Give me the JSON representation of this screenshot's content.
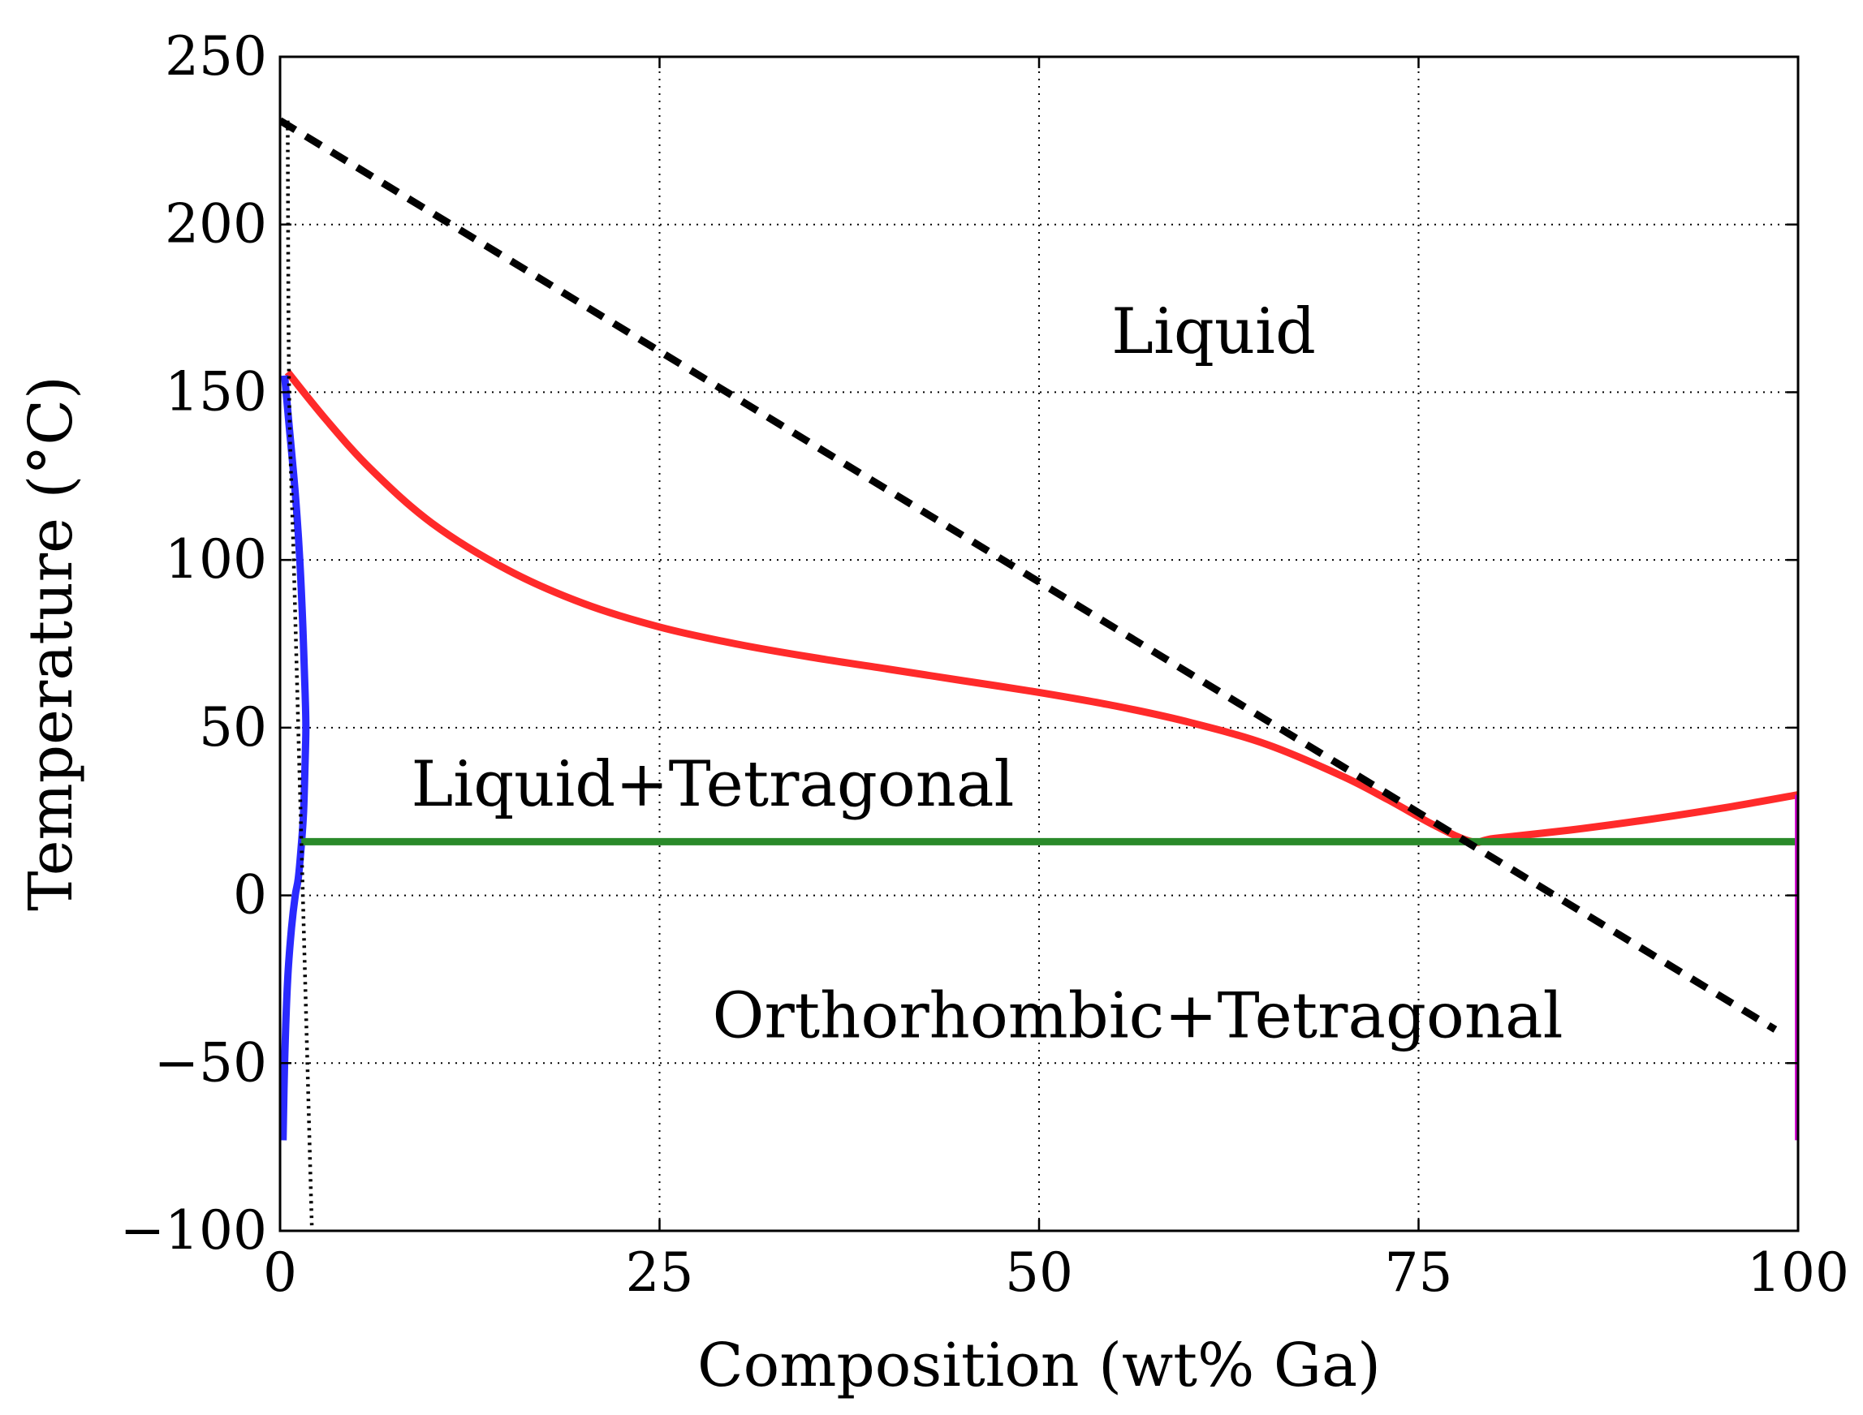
{
  "chart_data": {
    "type": "line",
    "title": "",
    "xlabel": "Composition (wt% Ga)",
    "ylabel": "Temperature (°C)",
    "xlim": [
      0,
      100
    ],
    "ylim": [
      -100,
      250
    ],
    "xticks": [
      0,
      25,
      50,
      75,
      100
    ],
    "yticks": [
      -100,
      -50,
      0,
      50,
      100,
      150,
      200,
      250
    ],
    "grid": true,
    "grid_style": "dotted",
    "legend": "none",
    "colors": {
      "liquidus": "#ff2a2a",
      "solvus": "#2a2aff",
      "eutectic": "#2a8a2a",
      "reference": "#000000",
      "right_boundary": "#cc00cc"
    },
    "annotations": [
      {
        "text": "Liquid",
        "x": 61.5,
        "y": 168
      },
      {
        "text": "Liquid+Tetragonal",
        "x": 28.5,
        "y": 33
      },
      {
        "text": "Orthorhombic+Tetragonal",
        "x": 56.5,
        "y": -36
      }
    ],
    "series": [
      {
        "id": "liquidus",
        "color": "#ff2a2a",
        "style": "solid",
        "x": [
          0.5,
          3,
          6,
          10,
          15,
          20,
          25,
          30,
          35,
          40,
          45,
          50,
          55,
          60,
          65,
          70,
          73,
          76,
          78.5,
          80,
          85,
          90,
          95,
          100
        ],
        "y": [
          156,
          142,
          127,
          111,
          97,
          87,
          80,
          75,
          71,
          67.5,
          64,
          60.5,
          56.5,
          51.5,
          45,
          35.5,
          28.5,
          21,
          16,
          17,
          19.5,
          22.5,
          26,
          30
        ]
      },
      {
        "id": "solvus",
        "color": "#2a2aff",
        "style": "solid",
        "x": [
          0.3,
          0.6,
          1.0,
          1.3,
          1.5,
          1.65,
          1.7,
          1.65,
          1.55,
          1.4,
          1.2,
          1.0,
          0.75,
          0.5,
          0.3,
          0.2
        ],
        "y": [
          155,
          140,
          120,
          100,
          80,
          60,
          50,
          40,
          25,
          15,
          5,
          0,
          -10,
          -25,
          -50,
          -73
        ]
      },
      {
        "id": "eutectic",
        "color": "#2a8a2a",
        "style": "solid",
        "x": [
          1.4,
          100
        ],
        "y": [
          16,
          16
        ]
      },
      {
        "id": "metastable-liquidus",
        "color": "#000000",
        "style": "dashed",
        "x": [
          0,
          98.5
        ],
        "y": [
          231,
          -40
        ]
      },
      {
        "id": "left-dotted-boundary",
        "color": "#000000",
        "style": "dotted",
        "x": [
          0.5,
          0.6,
          0.9,
          1.2,
          1.5,
          1.8,
          2.1
        ],
        "y": [
          231,
          150,
          100,
          50,
          0,
          -50,
          -100
        ]
      },
      {
        "id": "right-boundary",
        "color": "#cc00cc",
        "style": "solid",
        "x": [
          99.9,
          99.9
        ],
        "y": [
          30,
          -73
        ]
      }
    ]
  }
}
